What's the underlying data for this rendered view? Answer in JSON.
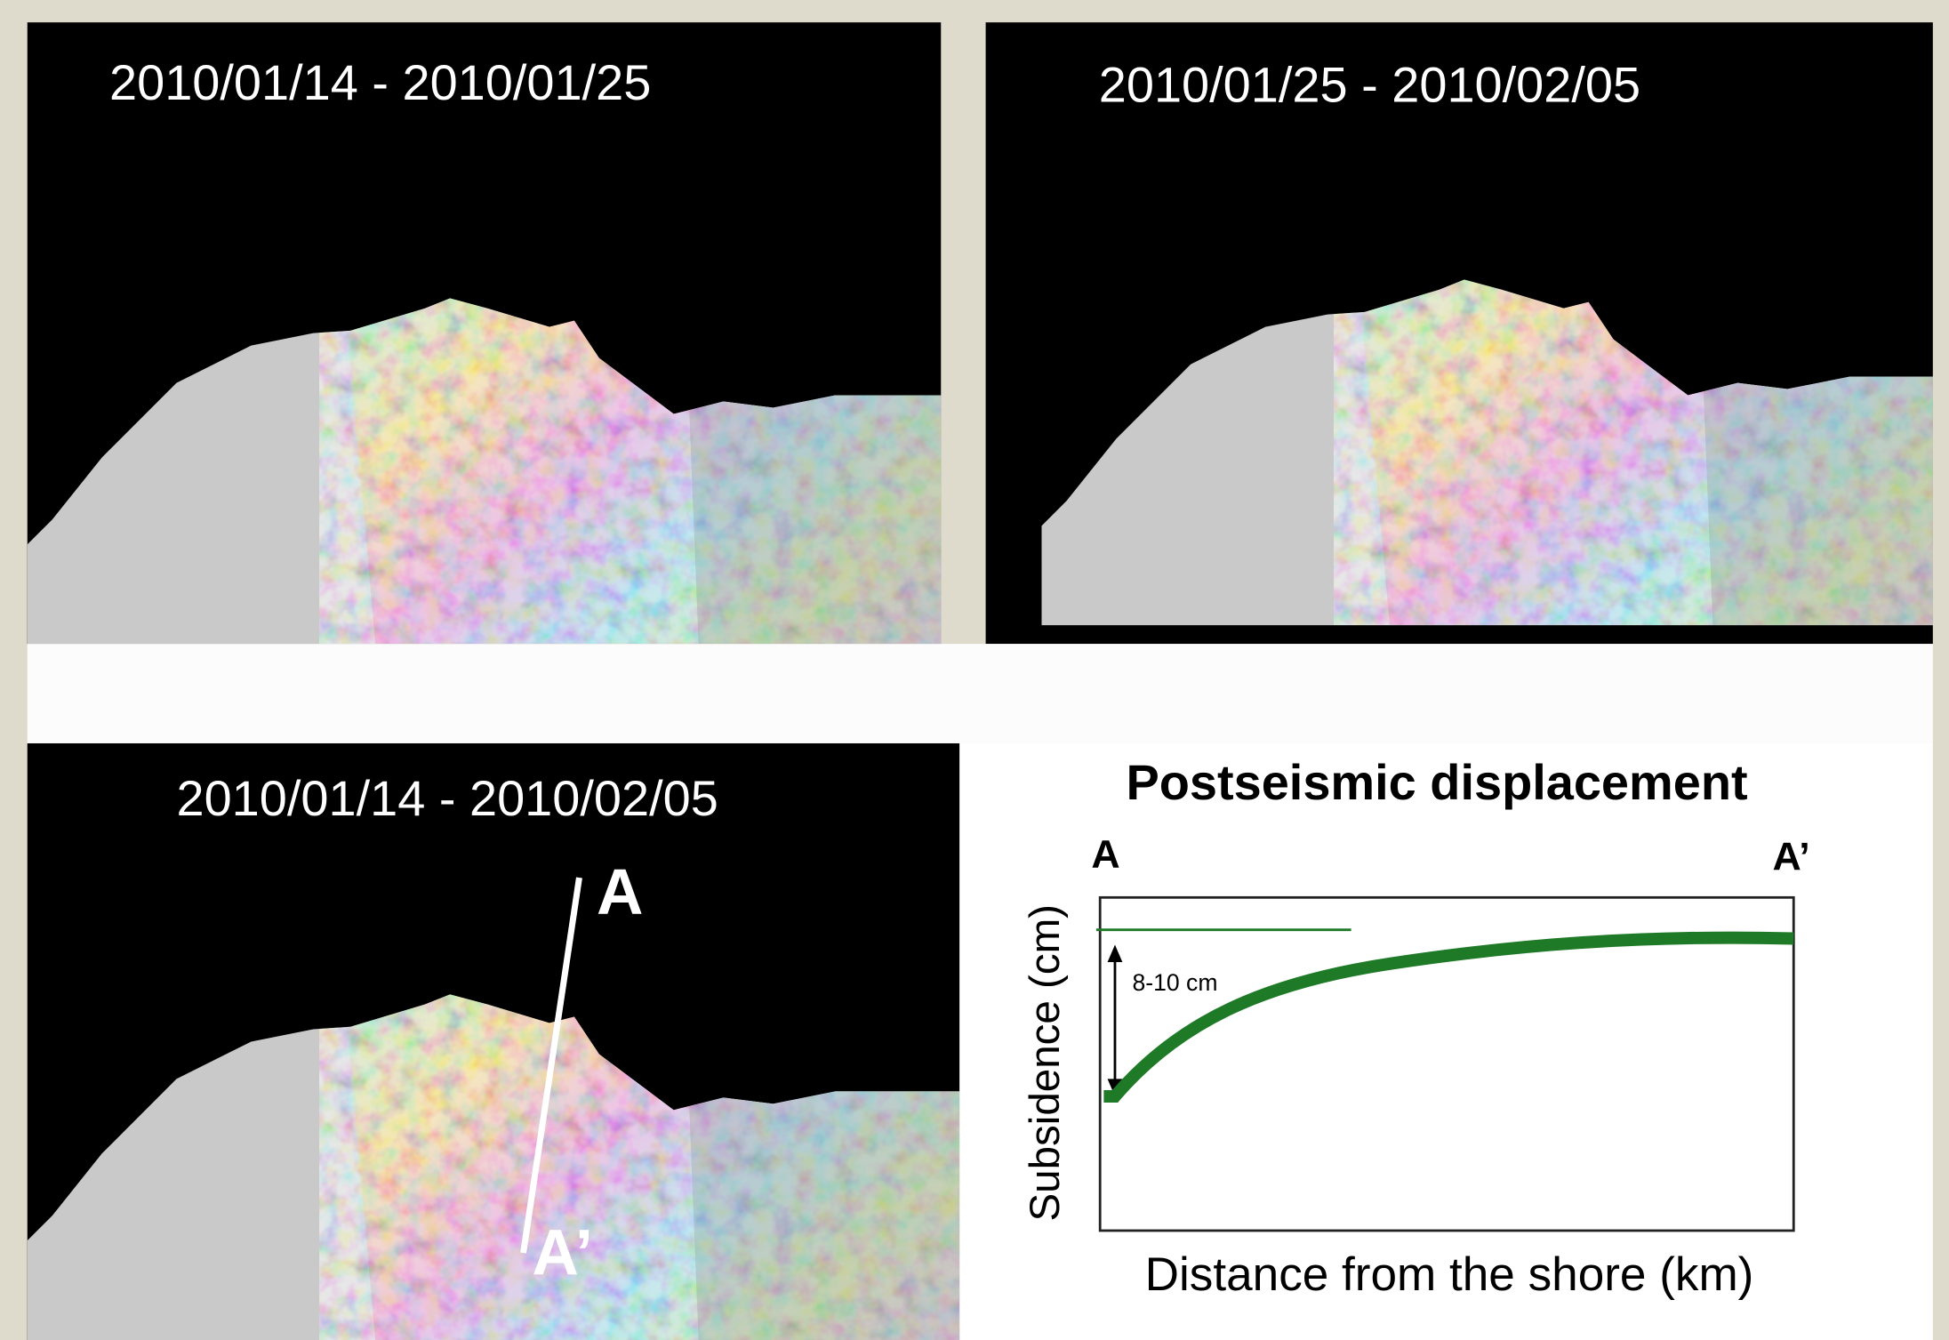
{
  "panels": [
    {
      "title": "2010/01/14 - 2010/01/25"
    },
    {
      "title": "2010/01/25 - 2010/02/05"
    },
    {
      "title": "2010/01/14 - 2010/02/05",
      "profile_start": "A",
      "profile_end": "A’"
    }
  ],
  "profile_plot": {
    "title": "Postseismic displacement",
    "start_label": "A",
    "end_label": "A’",
    "y_label": "Subsidence (cm)",
    "x_label": "Distance from the shore (km)",
    "annotation": "8-10 cm"
  }
}
